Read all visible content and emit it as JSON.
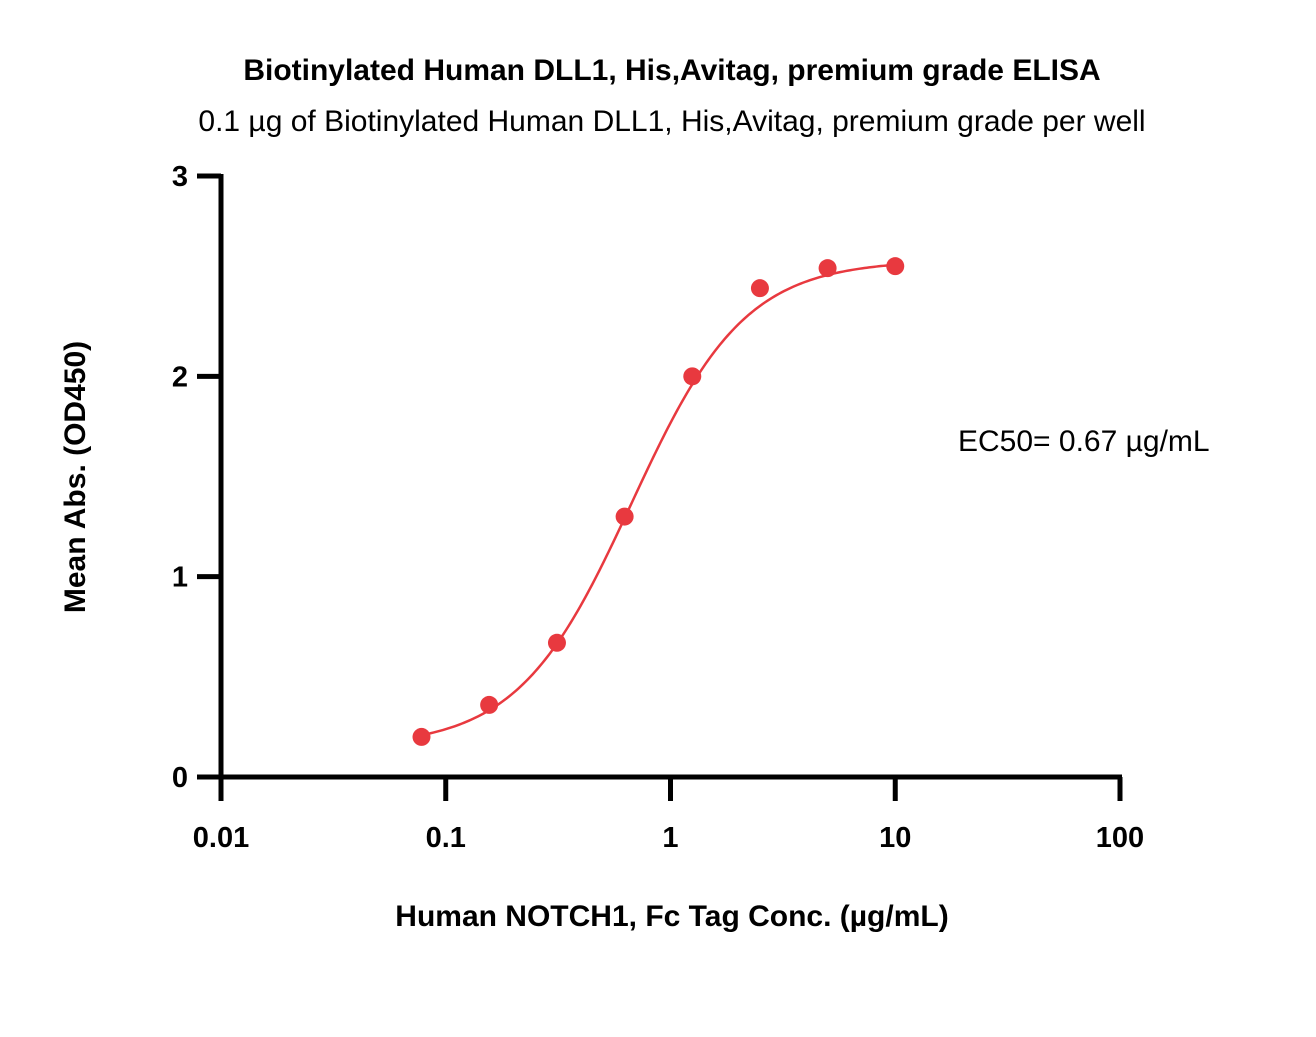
{
  "chart_data": {
    "type": "scatter",
    "title": "Biotinylated Human DLL1, His,Avitag, premium grade ELISA",
    "subtitle": "0.1 µg of Biotinylated Human DLL1, His,Avitag, premium grade per well",
    "xlabel": "Human NOTCH1, Fc Tag Conc. (µg/mL)",
    "ylabel": "Mean Abs. (OD450)",
    "x_scale": "log",
    "xlim": [
      0.01,
      100
    ],
    "ylim": [
      0,
      3
    ],
    "x_ticks": [
      0.01,
      0.1,
      1,
      10,
      100
    ],
    "x_tick_labels": [
      "0.01",
      "0.1",
      "1",
      "10",
      "100"
    ],
    "y_ticks": [
      0,
      1,
      2,
      3
    ],
    "y_tick_labels": [
      "0",
      "1",
      "2",
      "3"
    ],
    "grid": false,
    "legend": "none",
    "series": [
      {
        "color": "#e8393f",
        "x": [
          0.078,
          0.156,
          0.3125,
          0.625,
          1.25,
          2.5,
          5,
          10
        ],
        "y": [
          0.2,
          0.36,
          0.67,
          1.3,
          2.0,
          2.44,
          2.54,
          2.55
        ],
        "fit": {
          "model": "4PL",
          "bottom": 0.15,
          "top": 2.58,
          "ec50": 0.67,
          "hill": 1.72,
          "x_range": [
            0.078,
            10
          ]
        }
      }
    ],
    "annotations": [
      {
        "text": "EC50= 0.67 µg/mL"
      }
    ]
  }
}
